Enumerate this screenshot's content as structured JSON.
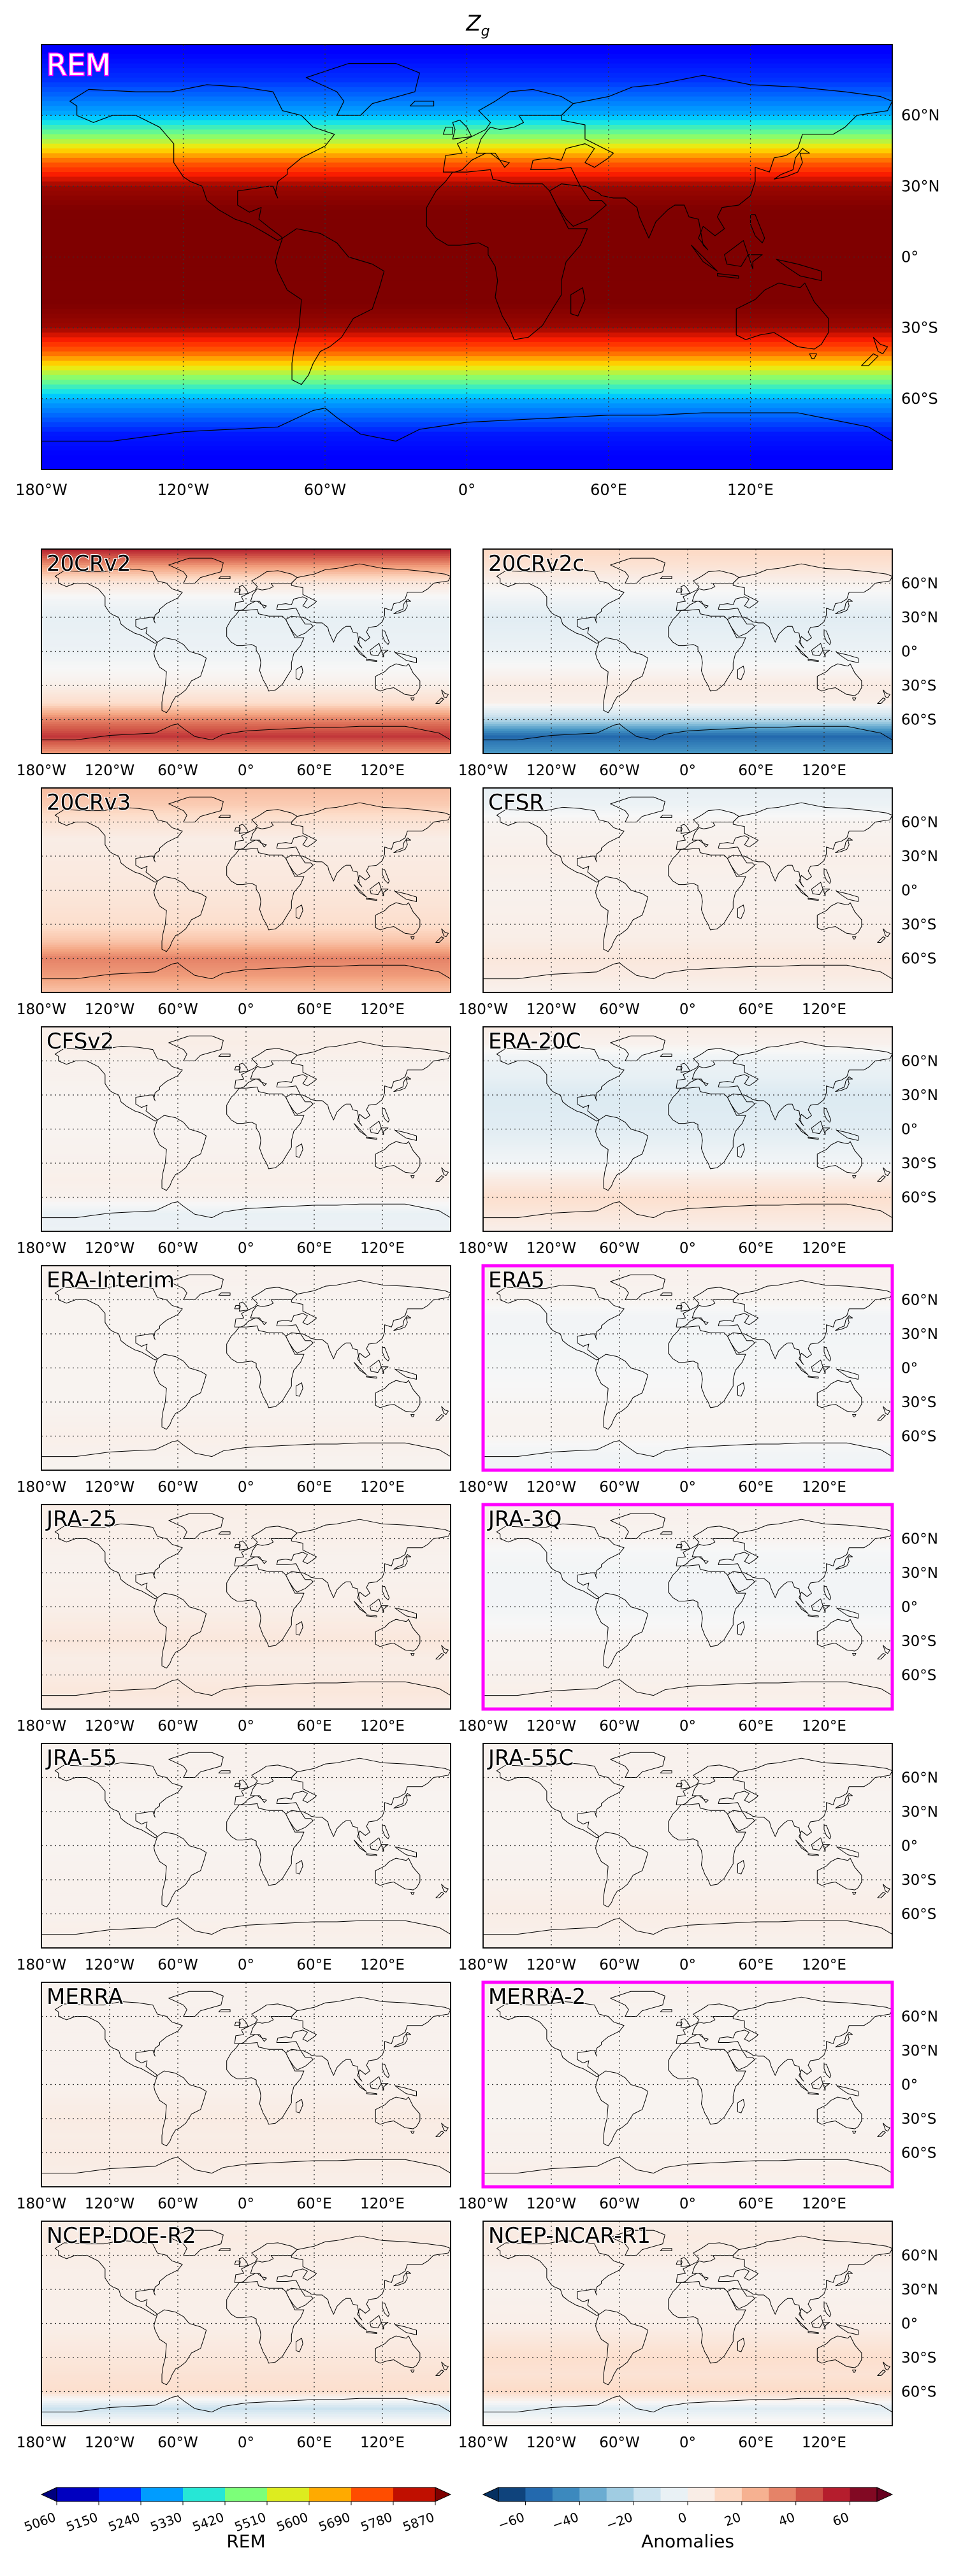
{
  "figure": {
    "title_main": "Z",
    "title_sub": "g",
    "lon_ticks": [
      "180°W",
      "120°W",
      "60°W",
      "0°",
      "60°E",
      "120°E"
    ],
    "lat_ticks": [
      "60°N",
      "30°N",
      "0°",
      "30°S",
      "60°S"
    ]
  },
  "chart_data": [
    {
      "type": "heatmap",
      "panel": "REM",
      "label": "REM",
      "highlight_color": "#ff00ff",
      "colormap": "jet",
      "x": "longitude",
      "xlim": [
        -180,
        180
      ],
      "y": "latitude",
      "ylim": [
        -90,
        90
      ],
      "grid": true,
      "zonal_profile": {
        "lat": [
          -90,
          -75,
          -60,
          -50,
          -40,
          -30,
          -20,
          0,
          20,
          30,
          40,
          50,
          60,
          75,
          90
        ],
        "values": [
          5150,
          5180,
          5300,
          5500,
          5720,
          5850,
          5870,
          5870,
          5870,
          5850,
          5720,
          5500,
          5300,
          5200,
          5150
        ]
      }
    },
    {
      "type": "heatmap",
      "panel": "20CRv2",
      "label": "20CRv2",
      "highlighted": false,
      "colormap": "RdBu_r",
      "zonal_profile": {
        "lat": [
          -90,
          -75,
          -60,
          -45,
          -30,
          0,
          30,
          45,
          60,
          75,
          90
        ],
        "values": [
          30,
          50,
          35,
          12,
          4,
          -4,
          -6,
          -2,
          8,
          30,
          55
        ]
      }
    },
    {
      "type": "heatmap",
      "panel": "20CRv2c",
      "label": "20CRv2c",
      "highlighted": false,
      "colormap": "RdBu_r",
      "zonal_profile": {
        "lat": [
          -90,
          -75,
          -60,
          -45,
          -30,
          0,
          30,
          45,
          60,
          75,
          90
        ],
        "values": [
          -40,
          -55,
          -20,
          4,
          6,
          -4,
          -8,
          -3,
          3,
          10,
          15
        ]
      }
    },
    {
      "type": "heatmap",
      "panel": "20CRv3",
      "label": "20CRv3",
      "highlighted": false,
      "colormap": "RdBu_r",
      "zonal_profile": {
        "lat": [
          -90,
          -75,
          -60,
          -45,
          -30,
          0,
          30,
          45,
          60,
          75,
          90
        ],
        "values": [
          20,
          30,
          35,
          20,
          12,
          8,
          6,
          5,
          10,
          18,
          22
        ]
      }
    },
    {
      "type": "heatmap",
      "panel": "CFSR",
      "label": "CFSR",
      "highlighted": false,
      "colormap": "RdBu_r",
      "zonal_profile": {
        "lat": [
          -90,
          -75,
          -60,
          -45,
          -30,
          0,
          30,
          45,
          60,
          75,
          90
        ],
        "values": [
          3,
          6,
          8,
          5,
          4,
          3,
          4,
          3,
          2,
          -4,
          -6
        ]
      }
    },
    {
      "type": "heatmap",
      "panel": "CFSv2",
      "label": "CFSv2",
      "highlighted": false,
      "colormap": "RdBu_r",
      "zonal_profile": {
        "lat": [
          -90,
          -75,
          -60,
          -45,
          -30,
          0,
          30,
          45,
          60,
          75,
          90
        ],
        "values": [
          -4,
          -5,
          3,
          4,
          3,
          2,
          2,
          3,
          3,
          5,
          4
        ]
      }
    },
    {
      "type": "heatmap",
      "panel": "ERA-20C",
      "label": "ERA-20C",
      "highlighted": false,
      "colormap": "RdBu_r",
      "zonal_profile": {
        "lat": [
          -90,
          -75,
          -60,
          -45,
          -30,
          0,
          30,
          45,
          60,
          75,
          90
        ],
        "values": [
          4,
          8,
          12,
          6,
          -2,
          -8,
          -10,
          -6,
          -4,
          3,
          5
        ]
      }
    },
    {
      "type": "heatmap",
      "panel": "ERA-Interim",
      "label": "ERA-Interim",
      "highlighted": false,
      "colormap": "RdBu_r",
      "zonal_profile": {
        "lat": [
          -90,
          -75,
          -60,
          -45,
          -30,
          0,
          30,
          45,
          60,
          75,
          90
        ],
        "values": [
          2,
          3,
          4,
          3,
          2,
          2,
          2,
          2,
          2,
          3,
          3
        ]
      }
    },
    {
      "type": "heatmap",
      "panel": "ERA5",
      "label": "ERA5",
      "highlighted": true,
      "highlight_color": "#ff00ff",
      "colormap": "RdBu_r",
      "zonal_profile": {
        "lat": [
          -90,
          -75,
          -60,
          -45,
          -30,
          0,
          30,
          45,
          60,
          75,
          90
        ],
        "values": [
          -3,
          -2,
          2,
          2,
          1,
          -1,
          -2,
          -2,
          2,
          3,
          3
        ]
      }
    },
    {
      "type": "heatmap",
      "panel": "JRA-25",
      "label": "JRA-25",
      "highlighted": false,
      "colormap": "RdBu_r",
      "zonal_profile": {
        "lat": [
          -90,
          -75,
          -60,
          -45,
          -30,
          0,
          30,
          45,
          60,
          75,
          90
        ],
        "values": [
          5,
          8,
          6,
          5,
          8,
          4,
          3,
          3,
          4,
          4,
          5
        ]
      }
    },
    {
      "type": "heatmap",
      "panel": "JRA-3Q",
      "label": "JRA-3Q",
      "highlighted": true,
      "highlight_color": "#ff00ff",
      "colormap": "RdBu_r",
      "zonal_profile": {
        "lat": [
          -90,
          -75,
          -60,
          -45,
          -30,
          0,
          30,
          45,
          60,
          75,
          90
        ],
        "values": [
          3,
          4,
          3,
          2,
          2,
          -2,
          -2,
          -1,
          2,
          3,
          3
        ]
      }
    },
    {
      "type": "heatmap",
      "panel": "JRA-55",
      "label": "JRA-55",
      "highlighted": false,
      "colormap": "RdBu_r",
      "zonal_profile": {
        "lat": [
          -90,
          -75,
          -60,
          -45,
          -30,
          0,
          30,
          45,
          60,
          75,
          90
        ],
        "values": [
          3,
          4,
          3,
          3,
          3,
          2,
          2,
          2,
          3,
          3,
          3
        ]
      }
    },
    {
      "type": "heatmap",
      "panel": "JRA-55C",
      "label": "JRA-55C",
      "highlighted": false,
      "colormap": "RdBu_r",
      "zonal_profile": {
        "lat": [
          -90,
          -75,
          -60,
          -45,
          -30,
          0,
          30,
          45,
          60,
          75,
          90
        ],
        "values": [
          3,
          4,
          5,
          4,
          3,
          2,
          2,
          2,
          3,
          3,
          3
        ]
      }
    },
    {
      "type": "heatmap",
      "panel": "MERRA",
      "label": "MERRA",
      "highlighted": false,
      "colormap": "RdBu_r",
      "zonal_profile": {
        "lat": [
          -90,
          -75,
          -60,
          -45,
          -30,
          0,
          30,
          45,
          60,
          75,
          90
        ],
        "values": [
          4,
          5,
          6,
          5,
          6,
          3,
          3,
          3,
          3,
          3,
          3
        ]
      }
    },
    {
      "type": "heatmap",
      "panel": "MERRA-2",
      "label": "MERRA-2",
      "highlighted": true,
      "highlight_color": "#ff00ff",
      "colormap": "RdBu_r",
      "zonal_profile": {
        "lat": [
          -90,
          -75,
          -60,
          -45,
          -30,
          0,
          30,
          45,
          60,
          75,
          90
        ],
        "values": [
          3,
          4,
          3,
          3,
          2,
          2,
          2,
          2,
          2,
          3,
          3
        ]
      }
    },
    {
      "type": "heatmap",
      "panel": "NCEP-DOE-R2",
      "label": "NCEP-DOE-R2",
      "highlighted": false,
      "colormap": "RdBu_r",
      "zonal_profile": {
        "lat": [
          -90,
          -75,
          -60,
          -45,
          -30,
          0,
          30,
          45,
          60,
          75,
          90
        ],
        "values": [
          5,
          -15,
          12,
          10,
          8,
          4,
          4,
          4,
          5,
          6,
          5
        ]
      }
    },
    {
      "type": "heatmap",
      "panel": "NCEP-NCAR-R1",
      "label": "NCEP-NCAR-R1",
      "highlighted": false,
      "colormap": "RdBu_r",
      "zonal_profile": {
        "lat": [
          -90,
          -75,
          -60,
          -45,
          -30,
          0,
          30,
          45,
          60,
          75,
          90
        ],
        "values": [
          4,
          -8,
          14,
          10,
          12,
          4,
          3,
          3,
          5,
          6,
          5
        ]
      }
    }
  ],
  "colorbars": {
    "rem": {
      "label": "REM",
      "colormap": "jet",
      "range": [
        5060,
        5870
      ],
      "ticks": [
        "5060",
        "5150",
        "5240",
        "5330",
        "5420",
        "5510",
        "5600",
        "5690",
        "5780",
        "5870"
      ]
    },
    "anomalies": {
      "label": "Anomalies",
      "colormap": "RdBu_r",
      "range": [
        -70,
        70
      ],
      "ticks": [
        "−60",
        "−40",
        "−20",
        "0",
        "20",
        "40",
        "60"
      ]
    }
  }
}
